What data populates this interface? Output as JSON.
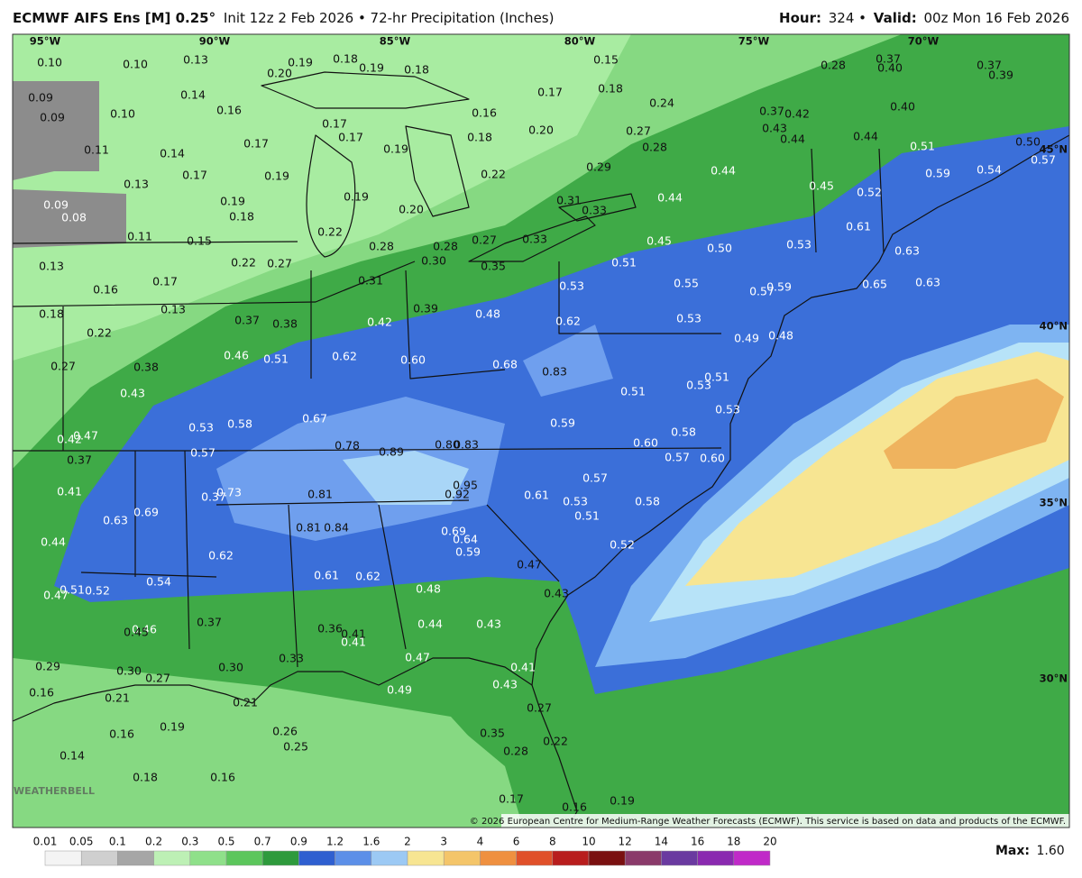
{
  "header": {
    "title_bold": "ECMWF AIFS Ens [M] 0.25°",
    "title_rest": "Init 12z 2 Feb 2026 • 72-hr Precipitation (Inches)",
    "hour_label": "Hour:",
    "hour_value": "324 •",
    "valid_label": "Valid:",
    "valid_value": "00z Mon 16 Feb 2026"
  },
  "map": {
    "longitudes": [
      "95°W",
      "90°W",
      "85°W",
      "80°W",
      "75°W",
      "70°W"
    ],
    "latitudes": [
      "45°N",
      "40°N",
      "35°N",
      "30°N"
    ],
    "labels": [
      "0.10",
      "0.10",
      "0.13",
      "0.20",
      "0.19",
      "0.18",
      "0.19",
      "0.18",
      "0.15",
      "0.18",
      "0.17",
      "0.28",
      "0.37",
      "0.40",
      "0.37",
      "0.39",
      "0.09",
      "0.09",
      "0.14",
      "0.10",
      "0.16",
      "0.24",
      "0.37",
      "0.42",
      "0.40",
      "0.43",
      "0.44",
      "0.17",
      "0.17",
      "0.17",
      "0.19",
      "0.16",
      "0.18",
      "0.20",
      "0.27",
      "0.28",
      "0.44",
      "0.51",
      "0.50",
      "0.57",
      "0.11",
      "0.14",
      "0.17",
      "0.19",
      "0.13",
      "0.29",
      "0.44",
      "0.59",
      "0.54",
      "0.22",
      "0.19",
      "0.19",
      "0.18",
      "0.20",
      "0.31",
      "0.33",
      "0.44",
      "0.45",
      "0.52",
      "0.09",
      "0.08",
      "0.22",
      "0.11",
      "0.15",
      "0.28",
      "0.28",
      "0.27",
      "0.33",
      "0.45",
      "0.50",
      "0.53",
      "0.61",
      "0.13",
      "0.22",
      "0.27",
      "0.30",
      "0.35",
      "0.51",
      "0.63",
      "0.16",
      "0.17",
      "0.31",
      "0.53",
      "0.55",
      "0.57",
      "0.59",
      "0.65",
      "0.63",
      "0.18",
      "0.13",
      "0.39",
      "0.48",
      "0.53",
      "0.62",
      "0.22",
      "0.37",
      "0.38",
      "0.42",
      "0.49",
      "0.48",
      "0.27",
      "0.46",
      "0.51",
      "0.62",
      "0.60",
      "0.68",
      "0.83",
      "0.38",
      "0.43",
      "0.51",
      "0.51",
      "0.53",
      "0.53",
      "0.53",
      "0.58",
      "0.67",
      "0.59",
      "0.58",
      "0.42",
      "0.47",
      "0.37",
      "0.57",
      "0.78",
      "0.89",
      "0.80",
      "0.83",
      "0.60",
      "0.57",
      "0.60",
      "0.41",
      "0.73",
      "0.37",
      "0.81",
      "0.95",
      "0.92",
      "0.61",
      "0.53",
      "0.57",
      "0.58",
      "0.63",
      "0.69",
      "0.81",
      "0.84",
      "0.51",
      "0.69",
      "0.64",
      "0.59",
      "0.44",
      "0.62",
      "0.52",
      "0.47",
      "0.54",
      "0.51",
      "0.52",
      "0.47",
      "0.61",
      "0.62",
      "0.48",
      "0.43",
      "0.37",
      "0.46",
      "0.45",
      "0.36",
      "0.41",
      "0.41",
      "0.44",
      "0.43",
      "0.47",
      "0.33",
      "0.30",
      "0.29",
      "0.30",
      "0.27",
      "0.41",
      "0.43",
      "0.49",
      "0.16",
      "0.21",
      "0.21",
      "0.27",
      "0.16",
      "0.19",
      "0.26",
      "0.25",
      "0.35",
      "0.22",
      "0.28",
      "0.14",
      "0.18",
      "0.16",
      "0.17",
      "0.16",
      "0.19"
    ],
    "copyright": "© 2026 European Centre for Medium-Range Weather Forecasts (ECMWF). This service is based on data and products of the ECMWF.",
    "watermark": "WEATHERBELL"
  },
  "legend": {
    "ticks": [
      "0.01",
      "0.05",
      "0.1",
      "0.2",
      "0.3",
      "0.5",
      "0.7",
      "0.9",
      "1.2",
      "1.6",
      "2",
      "3",
      "4",
      "6",
      "8",
      "10",
      "12",
      "14",
      "16",
      "18",
      "20"
    ],
    "max_label": "Max:",
    "max_value": "1.60"
  }
}
